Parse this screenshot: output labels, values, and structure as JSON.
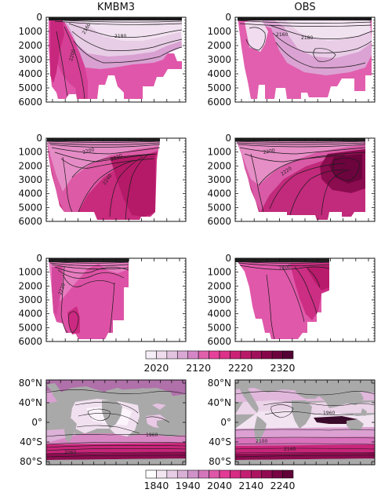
{
  "titles": [
    "KMBM3",
    "OBS"
  ],
  "section_panels": {
    "depth_ticks": [
      "0",
      "1000",
      "2000",
      "3000",
      "4000",
      "5000",
      "6000"
    ],
    "depth_range": [
      0,
      6000
    ],
    "contour_labels": [
      "2160",
      "2180",
      "2200",
      "2220",
      "2240"
    ],
    "rows": [
      {
        "left_contour_labels": [
          "2160",
          "2180",
          "2200"
        ],
        "right_contour_labels": [
          "2160",
          "2180"
        ]
      },
      {
        "left_contour_labels": [
          "2200",
          "2220",
          "2240"
        ],
        "right_contour_labels": [
          "2200",
          "2220"
        ]
      },
      {
        "left_contour_labels": [
          "2220"
        ],
        "right_contour_labels": [
          "2200"
        ]
      }
    ]
  },
  "colorbar_top": {
    "tick_labels": [
      "2020",
      "2120",
      "2220",
      "2320"
    ],
    "colors": [
      "#f6eef6",
      "#eedcec",
      "#e3c3e0",
      "#d9a8d4",
      "#d486c6",
      "#e060ac",
      "#e5409a",
      "#dd3088",
      "#cc2276",
      "#b81868",
      "#a0105a",
      "#86084a",
      "#6c043e",
      "#520234"
    ]
  },
  "map_panels": {
    "lat_ticks": [
      "80°N",
      "40°N",
      "0°",
      "40°S",
      "80°S"
    ],
    "contour_labels": [
      "2060",
      "1960",
      "2100",
      "2140"
    ],
    "land_color": "#a9a9a9"
  },
  "colorbar_bottom": {
    "tick_labels": [
      "1840",
      "1940",
      "2040",
      "2140",
      "2240"
    ],
    "colors": [
      "#ffffff",
      "#f2e6f1",
      "#e6cce4",
      "#d9b0d6",
      "#cf93ca",
      "#d476bb",
      "#de56a8",
      "#e33a96",
      "#d72a84",
      "#c41e72",
      "#ac1462",
      "#920a52",
      "#780444",
      "#600238"
    ]
  },
  "chart_data": [
    {
      "type": "heatmap",
      "title": "KMBM3",
      "ylim": [
        0,
        6000
      ],
      "yticks": [
        0,
        1000,
        2000,
        3000,
        4000,
        5000,
        6000
      ]
    },
    {
      "type": "heatmap",
      "title": "OBS",
      "ylim": [
        0,
        6000
      ],
      "yticks": [
        0,
        1000,
        2000,
        3000,
        4000,
        5000,
        6000
      ]
    },
    {
      "type": "heatmap",
      "ylim": [
        0,
        6000
      ],
      "yticks": [
        0,
        1000,
        2000,
        3000,
        4000,
        5000,
        6000
      ]
    },
    {
      "type": "heatmap",
      "ylim": [
        0,
        6000
      ],
      "yticks": [
        0,
        1000,
        2000,
        3000,
        4000,
        5000,
        6000
      ]
    },
    {
      "type": "heatmap",
      "ylim": [
        0,
        6000
      ],
      "yticks": [
        0,
        1000,
        2000,
        3000,
        4000,
        5000,
        6000
      ]
    },
    {
      "type": "heatmap",
      "ylim": [
        0,
        6000
      ],
      "yticks": [
        0,
        1000,
        2000,
        3000,
        4000,
        5000,
        6000
      ]
    },
    {
      "type": "heatmap",
      "yticks": [
        "80°N",
        "40°N",
        "0°",
        "40°S",
        "80°S"
      ]
    },
    {
      "type": "heatmap",
      "yticks": [
        "80°N",
        "40°N",
        "0°",
        "40°S",
        "80°S"
      ]
    }
  ]
}
